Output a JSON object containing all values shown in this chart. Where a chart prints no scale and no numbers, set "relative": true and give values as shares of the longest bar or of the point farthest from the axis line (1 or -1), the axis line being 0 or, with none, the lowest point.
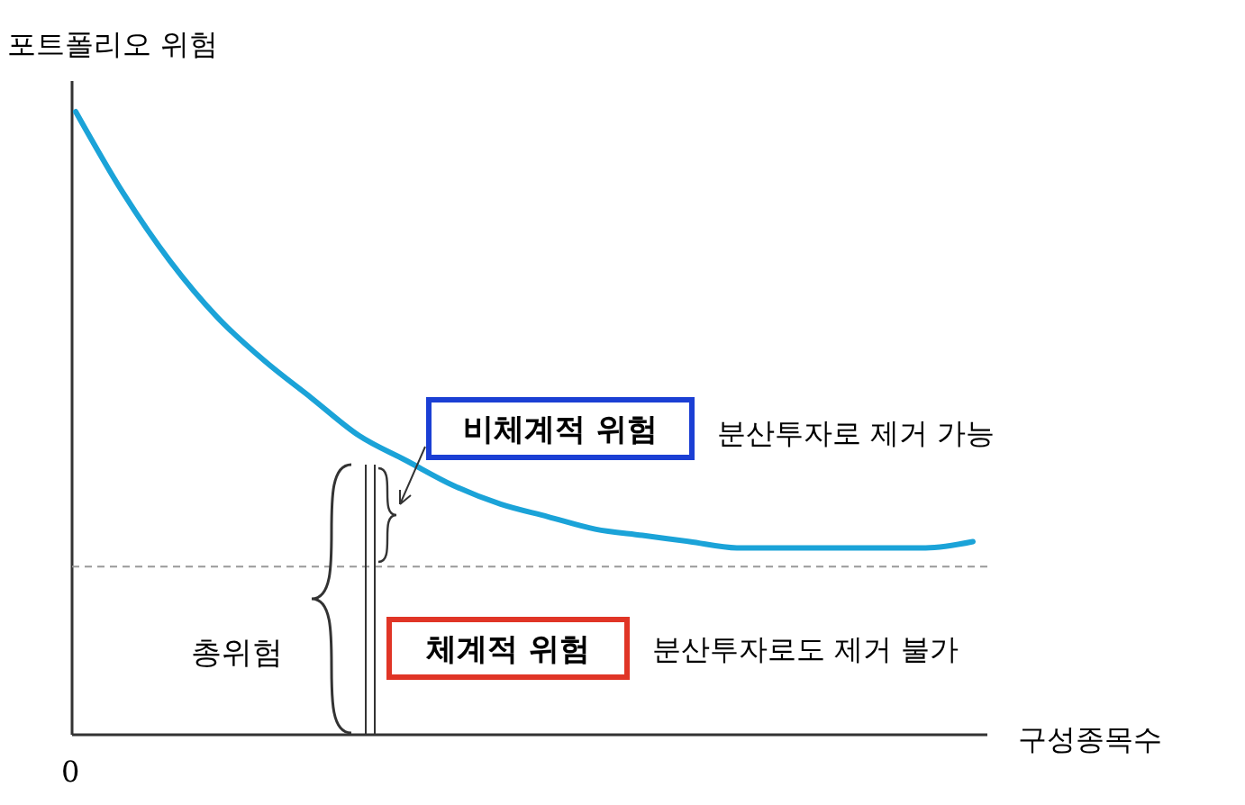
{
  "chart_data": {
    "type": "line",
    "relative": true,
    "ylabel": "포트폴리오 위험",
    "xlabel": "구성종목수",
    "categories": [
      null,
      null,
      null,
      null,
      null,
      null,
      null,
      null,
      null,
      null,
      null,
      null,
      null,
      null,
      null,
      null,
      null,
      null,
      null,
      null
    ],
    "series": [
      {
        "color": "#1ba3d8",
        "values": [
          1,
          0.87,
          0.76,
          0.67,
          0.6,
          0.54,
          0.48,
          0.44,
          0.4,
          0.37,
          0.35,
          0.33,
          0.32,
          0.31,
          0.3,
          0.3,
          0.3,
          0.3,
          0.3,
          0.31
        ]
      }
    ],
    "ref_lines": [
      {
        "axis": "y",
        "value": 0.27,
        "color": "#999999",
        "line_style": "dashed"
      }
    ],
    "annotations": [
      "0",
      "비체계적 위험",
      "분산투자로 제거 가능",
      "체계적 위험",
      "분산투자로도 제거 불가",
      "총위험"
    ]
  }
}
